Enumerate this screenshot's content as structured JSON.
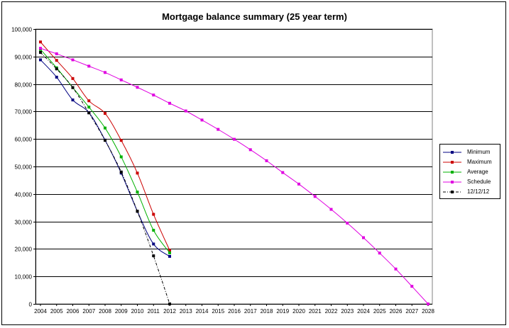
{
  "chart_data": {
    "type": "line",
    "title": "Mortgage balance summary (25 year term)",
    "xlabel": "",
    "ylabel": "",
    "x_ticks": [
      "2004",
      "2005",
      "2006",
      "2007",
      "2008",
      "2009",
      "2010",
      "2011",
      "2012",
      "2013",
      "2014",
      "2015",
      "2016",
      "2017",
      "2018",
      "2019",
      "2020",
      "2021",
      "2022",
      "2023",
      "2024",
      "2025",
      "2026",
      "2027",
      "2028"
    ],
    "y_ticks": [
      "0",
      "10,000",
      "20,000",
      "30,000",
      "40,000",
      "50,000",
      "60,000",
      "70,000",
      "80,000",
      "90,000",
      "100,000"
    ],
    "xlim": [
      2004,
      2028
    ],
    "ylim": [
      0,
      100000
    ],
    "grid": "horizontal",
    "legend_position": "right",
    "series": [
      {
        "name": "Minimum",
        "color": "#000080",
        "style": "solid",
        "points": [
          [
            2004,
            88800
          ],
          [
            2005,
            82500
          ],
          [
            2006,
            74200
          ],
          [
            2007,
            69600
          ],
          [
            2008,
            59600
          ],
          [
            2009,
            47600
          ],
          [
            2010,
            33700
          ],
          [
            2011,
            21800
          ],
          [
            2012,
            17300
          ]
        ]
      },
      {
        "name": "Maximum",
        "color": "#cc0000",
        "style": "solid",
        "points": [
          [
            2004,
            95300
          ],
          [
            2005,
            88600
          ],
          [
            2006,
            82000
          ],
          [
            2007,
            73900
          ],
          [
            2008,
            69300
          ],
          [
            2009,
            59500
          ],
          [
            2010,
            47600
          ],
          [
            2011,
            32600
          ],
          [
            2012,
            19500
          ]
        ]
      },
      {
        "name": "Average",
        "color": "#00b000",
        "style": "solid",
        "points": [
          [
            2004,
            92600
          ],
          [
            2005,
            85900
          ],
          [
            2006,
            78700
          ],
          [
            2007,
            71600
          ],
          [
            2008,
            64000
          ],
          [
            2009,
            53500
          ],
          [
            2010,
            40700
          ],
          [
            2011,
            26800
          ],
          [
            2012,
            18600
          ]
        ]
      },
      {
        "name": "Schedule",
        "color": "#e000e0",
        "style": "solid",
        "points": [
          [
            2004,
            93000
          ],
          [
            2005,
            91000
          ],
          [
            2006,
            88800
          ],
          [
            2007,
            86500
          ],
          [
            2008,
            84200
          ],
          [
            2009,
            81500
          ],
          [
            2010,
            78800
          ],
          [
            2011,
            76000
          ],
          [
            2012,
            73000
          ],
          [
            2013,
            70200
          ],
          [
            2014,
            66900
          ],
          [
            2015,
            63500
          ],
          [
            2016,
            59900
          ],
          [
            2017,
            56100
          ],
          [
            2018,
            52100
          ],
          [
            2019,
            47800
          ],
          [
            2020,
            43600
          ],
          [
            2021,
            39100
          ],
          [
            2022,
            34400
          ],
          [
            2023,
            29400
          ],
          [
            2024,
            24100
          ],
          [
            2025,
            18500
          ],
          [
            2026,
            12700
          ],
          [
            2027,
            6400
          ],
          [
            2028,
            0
          ]
        ]
      },
      {
        "name": "12/12/12",
        "color": "#000000",
        "style": "dashdot",
        "points": [
          [
            2004,
            91500
          ],
          [
            2005,
            85500
          ],
          [
            2006,
            78700
          ],
          [
            2007,
            69500
          ],
          [
            2008,
            59500
          ],
          [
            2009,
            48000
          ],
          [
            2010,
            33700
          ],
          [
            2011,
            17500
          ],
          [
            2012,
            0
          ]
        ]
      }
    ]
  }
}
